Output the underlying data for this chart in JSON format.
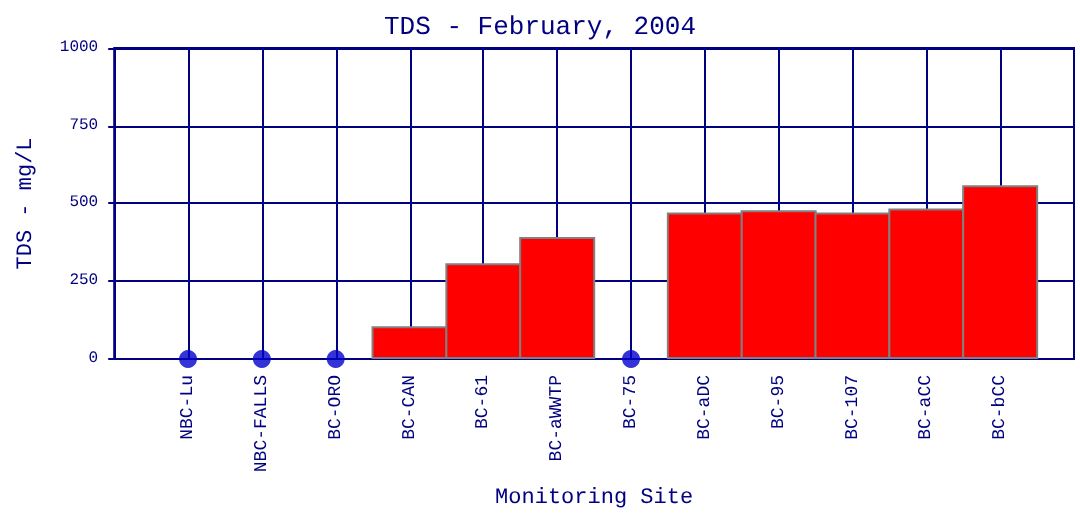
{
  "chart_data": {
    "type": "bar",
    "title": "TDS - February, 2004",
    "xlabel": "Monitoring Site",
    "ylabel": "TDS - mg/L",
    "categories": [
      "NBC-Lu",
      "NBC-FALLS",
      "BC-ORO",
      "BC-CAN",
      "BC-61",
      "BC-aWWTP",
      "BC-75",
      "BC-aDC",
      "BC-95",
      "BC-107",
      "BC-aCC",
      "BC-bCC"
    ],
    "series": [
      {
        "color": "#ff0000",
        "values": [
          null,
          null,
          null,
          105,
          308,
          392,
          null,
          471,
          478,
          471,
          484,
          559
        ]
      },
      {
        "type": "scatter",
        "color": "#0000cc",
        "x": [
          "NBC-Lu",
          "NBC-FALLS",
          "BC-ORO",
          "BC-75"
        ],
        "values": [
          0,
          0,
          0,
          0
        ]
      }
    ],
    "ylim": [
      0,
      1000
    ],
    "yticks": [
      0,
      250,
      500,
      750,
      1000
    ],
    "grid": true,
    "marker": "circle"
  }
}
